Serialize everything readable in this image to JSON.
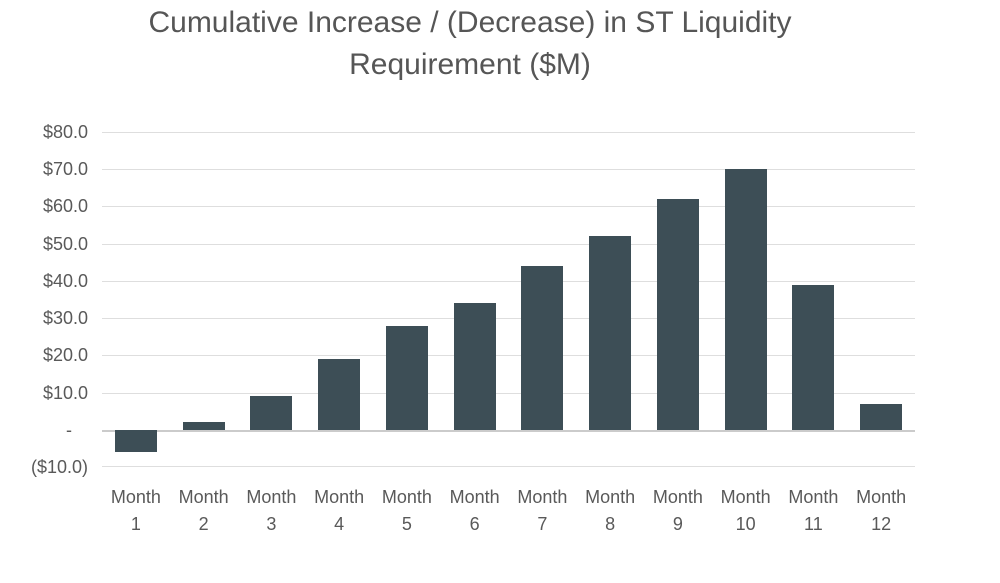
{
  "chart_data": {
    "type": "bar",
    "title": "Cumulative Increase / (Decrease) in ST Liquidity Requirement ($M)",
    "categories": [
      "Month 1",
      "Month 2",
      "Month 3",
      "Month 4",
      "Month 5",
      "Month 6",
      "Month 7",
      "Month 8",
      "Month 9",
      "Month 10",
      "Month 11",
      "Month 12"
    ],
    "values": [
      -6,
      2,
      9,
      19,
      28,
      34,
      44,
      52,
      62,
      70,
      39,
      7
    ],
    "xlabel": "",
    "ylabel": "",
    "ylim": [
      -10,
      80
    ],
    "grid": true,
    "legend": "none",
    "y_ticks": [
      {
        "value": 80,
        "label": "$80.0"
      },
      {
        "value": 70,
        "label": "$70.0"
      },
      {
        "value": 60,
        "label": "$60.0"
      },
      {
        "value": 50,
        "label": "$50.0"
      },
      {
        "value": 40,
        "label": "$40.0"
      },
      {
        "value": 30,
        "label": "$30.0"
      },
      {
        "value": 20,
        "label": "$20.0"
      },
      {
        "value": 10,
        "label": "$10.0"
      },
      {
        "value": 0,
        "label": "-"
      },
      {
        "value": -10,
        "label": "($10.0)"
      }
    ],
    "colors": {
      "bar": "#3D4E56",
      "gridline": "#DEDEDE",
      "axis_line": "#CBCBCB",
      "title_text": "#565656",
      "tick_text": "#595959",
      "background": "#FFFFFF"
    }
  }
}
